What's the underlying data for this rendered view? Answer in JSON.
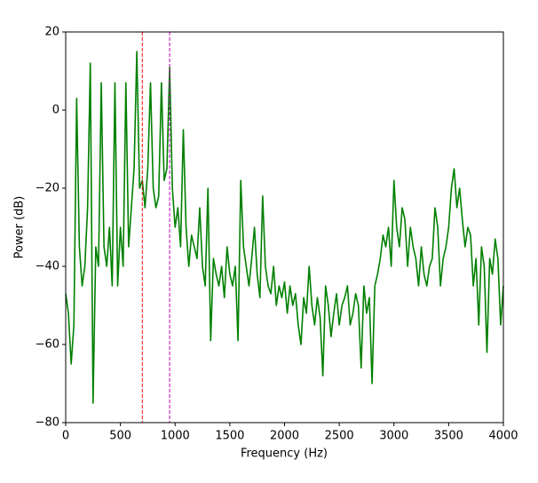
{
  "chart_data": {
    "type": "line",
    "xlabel": "Frequency (Hz)",
    "ylabel": "Power (dB)",
    "x": [
      0,
      25,
      50,
      75,
      100,
      125,
      150,
      175,
      200,
      225,
      250,
      275,
      300,
      325,
      350,
      375,
      400,
      425,
      450,
      475,
      500,
      525,
      550,
      575,
      600,
      625,
      650,
      675,
      700,
      725,
      750,
      775,
      800,
      825,
      850,
      875,
      900,
      925,
      950,
      975,
      1000,
      1025,
      1050,
      1075,
      1100,
      1125,
      1150,
      1175,
      1200,
      1225,
      1250,
      1275,
      1300,
      1325,
      1350,
      1375,
      1400,
      1425,
      1450,
      1475,
      1500,
      1525,
      1550,
      1575,
      1600,
      1625,
      1650,
      1675,
      1700,
      1725,
      1750,
      1775,
      1800,
      1825,
      1850,
      1875,
      1900,
      1925,
      1950,
      1975,
      2000,
      2025,
      2050,
      2075,
      2100,
      2125,
      2150,
      2175,
      2200,
      2225,
      2250,
      2275,
      2300,
      2325,
      2350,
      2375,
      2400,
      2425,
      2450,
      2475,
      2500,
      2525,
      2550,
      2575,
      2600,
      2625,
      2650,
      2675,
      2700,
      2725,
      2750,
      2775,
      2800,
      2825,
      2850,
      2875,
      2900,
      2925,
      2950,
      2975,
      3000,
      3025,
      3050,
      3075,
      3100,
      3125,
      3150,
      3175,
      3200,
      3225,
      3250,
      3275,
      3300,
      3325,
      3350,
      3375,
      3400,
      3425,
      3450,
      3475,
      3500,
      3525,
      3550,
      3575,
      3600,
      3625,
      3650,
      3675,
      3700,
      3725,
      3750,
      3775,
      3800,
      3825,
      3850,
      3875,
      3900,
      3925,
      3950,
      3975,
      4000
    ],
    "series": [
      {
        "color": "#008000",
        "values": [
          -47,
          -52,
          -65,
          -55,
          3,
          -35,
          -45,
          -40,
          -25,
          12,
          -75,
          -35,
          -40,
          7,
          -35,
          -40,
          -30,
          -45,
          7,
          -45,
          -30,
          -40,
          7,
          -35,
          -25,
          -15,
          15,
          -20,
          -18,
          -25,
          -15,
          7,
          -20,
          -25,
          -22,
          7,
          -18,
          -15,
          11,
          -20,
          -30,
          -25,
          -35,
          -5,
          -30,
          -40,
          -32,
          -35,
          -38,
          -25,
          -40,
          -45,
          -20,
          -59,
          -38,
          -42,
          -45,
          -40,
          -48,
          -35,
          -42,
          -45,
          -40,
          -59,
          -18,
          -35,
          -40,
          -45,
          -38,
          -30,
          -42,
          -48,
          -22,
          -40,
          -45,
          -47,
          -40,
          -50,
          -45,
          -48,
          -44,
          -52,
          -45,
          -50,
          -47,
          -55,
          -60,
          -48,
          -52,
          -40,
          -50,
          -55,
          -48,
          -53,
          -68,
          -45,
          -50,
          -58,
          -52,
          -47,
          -55,
          -50,
          -48,
          -45,
          -55,
          -52,
          -47,
          -50,
          -66,
          -45,
          -52,
          -48,
          -70,
          -45,
          -42,
          -38,
          -32,
          -35,
          -30,
          -40,
          -18,
          -30,
          -35,
          -25,
          -28,
          -40,
          -30,
          -35,
          -38,
          -45,
          -35,
          -42,
          -45,
          -40,
          -38,
          -25,
          -30,
          -45,
          -38,
          -35,
          -30,
          -20,
          -15,
          -25,
          -20,
          -28,
          -35,
          -30,
          -32,
          -45,
          -38,
          -55,
          -35,
          -40,
          -62,
          -38,
          -42,
          -33,
          -38,
          -55,
          -45
        ]
      }
    ],
    "vlines": [
      {
        "x": 700,
        "color": "#ff0000"
      },
      {
        "x": 950,
        "color": "#bf00bf"
      }
    ],
    "xlim": [
      0,
      4000
    ],
    "xticks": [
      0,
      500,
      1000,
      1500,
      2000,
      2500,
      3000,
      3500,
      4000
    ],
    "ylim": [
      -80,
      20
    ],
    "yticks": [
      {
        "value": -80,
        "label": "−80"
      },
      {
        "value": -60,
        "label": "−60"
      },
      {
        "value": -40,
        "label": "−40"
      },
      {
        "value": -20,
        "label": "−20"
      },
      0,
      20
    ]
  }
}
